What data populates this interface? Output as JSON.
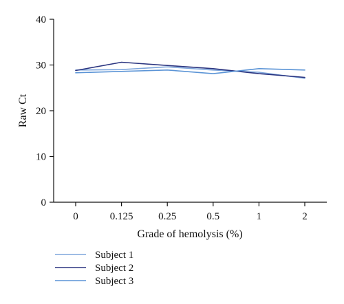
{
  "chart_data": {
    "type": "line",
    "title": "",
    "xlabel": "Grade of hemolysis (%)",
    "ylabel": "Raw Ct",
    "categories": [
      "0",
      "0.125",
      "0.25",
      "0.5",
      "1",
      "2"
    ],
    "ylim": [
      0,
      40
    ],
    "yticks": [
      0,
      10,
      20,
      30,
      40
    ],
    "grid": false,
    "legend_position": "bottom-left",
    "series": [
      {
        "name": "Subject 1",
        "color": "#7ea6dc",
        "values": [
          28.9,
          29.0,
          29.6,
          28.9,
          28.4,
          27.1
        ]
      },
      {
        "name": "Subject 2",
        "color": "#2b3580",
        "values": [
          28.8,
          30.6,
          29.9,
          29.2,
          28.1,
          27.3
        ]
      },
      {
        "name": "Subject 3",
        "color": "#5b94d6",
        "values": [
          28.3,
          28.6,
          28.9,
          28.1,
          29.2,
          28.9
        ]
      }
    ]
  }
}
